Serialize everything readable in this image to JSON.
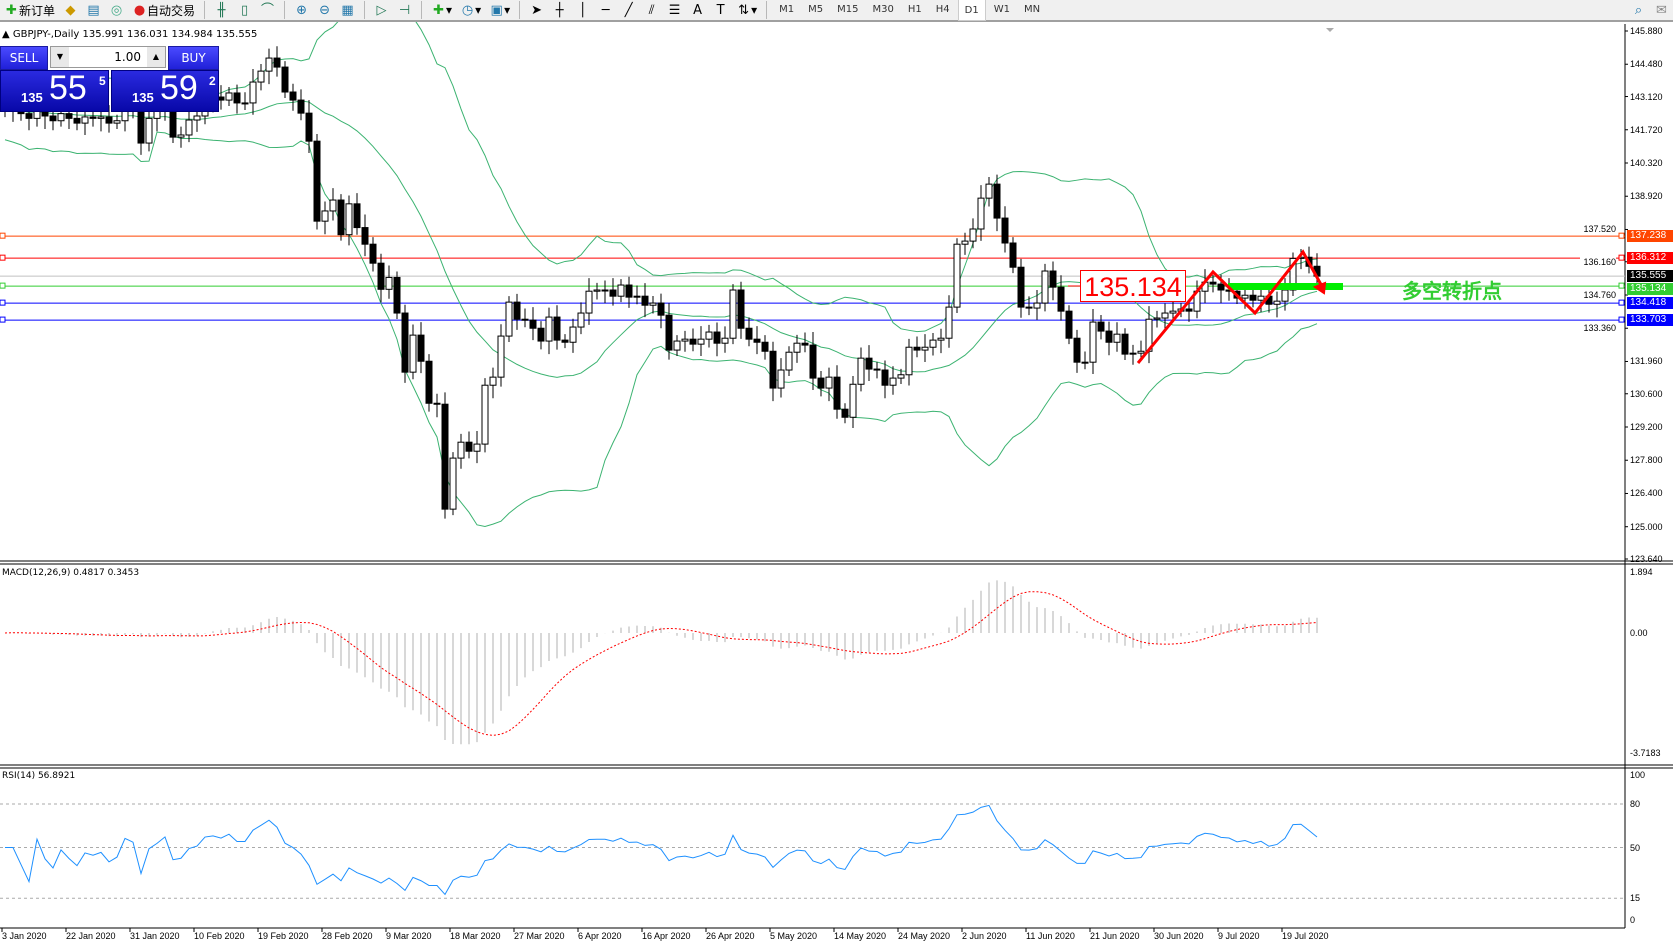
{
  "toolbar": {
    "new_order": "新订单",
    "auto_trading": "自动交易",
    "icons": [
      "new-order-icon",
      "navigator-icon",
      "market-watch-icon",
      "signals-icon",
      "auto-trading-icon",
      "bar-chart-icon",
      "candlestick-icon",
      "line-chart-icon",
      "zoom-in-icon",
      "zoom-out-icon",
      "tile-windows-icon",
      "autoscroll-icon",
      "chart-shift-icon",
      "indicators-icon",
      "periods-icon",
      "templates-icon",
      "cursor-icon",
      "crosshair-icon",
      "vertical-line-icon",
      "horizontal-line-icon",
      "trendline-icon",
      "equidistant-channel-icon",
      "fibonacci-icon",
      "text-icon",
      "text-label-icon",
      "arrows-icon",
      "search-icon",
      "chat-icon"
    ],
    "timeframes": [
      "M1",
      "M5",
      "M15",
      "M30",
      "H1",
      "H4",
      "D1",
      "W1",
      "MN"
    ],
    "active_timeframe": "D1"
  },
  "chart_header": {
    "symbol_info": "GBPJPY-,Daily  135.991 136.031 134.984 135.555"
  },
  "trade_panel": {
    "sell_label": "SELL",
    "buy_label": "BUY",
    "lot": "1.00",
    "sell_price": {
      "prefix": "135",
      "big": "55",
      "sup": "5"
    },
    "buy_price": {
      "prefix": "135",
      "big": "59",
      "sup": "2"
    }
  },
  "annotations": {
    "price_label": "135.134",
    "note": "多空转折点"
  },
  "chart_data": [
    {
      "type": "candlestick",
      "title": "GBPJPY-,Daily",
      "ohlc_last": {
        "open": 135.991,
        "high": 136.031,
        "low": 134.984,
        "close": 135.555
      },
      "indicator_overlay": "Bollinger Bands",
      "close": [
        142.5,
        142.7,
        142.4,
        142.2,
        142.6,
        142.3,
        142.1,
        142.4,
        142.2,
        142.0,
        142.26,
        142.2,
        142.26,
        142.0,
        142.1,
        142.6,
        142.5,
        141.16,
        142.2,
        142.5,
        142.9,
        141.41,
        141.5,
        142.13,
        142.3,
        143.0,
        143.1,
        142.97,
        143.27,
        142.85,
        142.85,
        143.73,
        144.19,
        144.74,
        144.36,
        143.31,
        142.97,
        142.42,
        141.24,
        137.87,
        138.3,
        138.76,
        137.3,
        138.6,
        137.6,
        136.9,
        136.1,
        135.0,
        135.5,
        134.0,
        131.51,
        133.07,
        131.97,
        130.2,
        130.16,
        125.74,
        127.89,
        128.56,
        128.18,
        128.48,
        130.96,
        131.3,
        133.03,
        134.46,
        133.74,
        133.7,
        133.36,
        132.82,
        133.83,
        132.86,
        132.77,
        133.41,
        134.0,
        134.92,
        134.97,
        134.97,
        134.71,
        135.18,
        134.67,
        134.71,
        134.33,
        134.42,
        133.91,
        132.44,
        132.82,
        132.9,
        132.69,
        132.9,
        133.2,
        132.73,
        132.94,
        134.97,
        133.36,
        132.9,
        132.77,
        132.39,
        130.84,
        131.6,
        132.35,
        132.73,
        132.65,
        131.26,
        130.84,
        131.3,
        129.95,
        129.61,
        131.0,
        132.1,
        131.64,
        131.6,
        130.96,
        131.26,
        131.4,
        132.56,
        132.44,
        132.56,
        132.86,
        132.94,
        134.25,
        136.9,
        137.03,
        137.54,
        138.84,
        139.43,
        138.0,
        136.95,
        135.93,
        134.25,
        134.21,
        134.42,
        135.77,
        135.09,
        134.08,
        132.94,
        131.93,
        131.93,
        133.62,
        133.24,
        132.77,
        133.11,
        132.27,
        132.31,
        132.39,
        133.74,
        133.79,
        134.0,
        134.08,
        134.17,
        134.08,
        134.92,
        135.3,
        135.22,
        134.97,
        134.92,
        134.63,
        134.75,
        134.54,
        134.71,
        134.37,
        134.5,
        134.97,
        136.3,
        136.35,
        135.97,
        135.555
      ],
      "x_tick_labels": [
        "3 Jan 2020",
        "22 Jan 2020",
        "31 Jan 2020",
        "10 Feb 2020",
        "19 Feb 2020",
        "28 Feb 2020",
        "9 Mar 2020",
        "18 Mar 2020",
        "27 Mar 2020",
        "6 Apr 2020",
        "16 Apr 2020",
        "26 Apr 2020",
        "5 May 2020",
        "14 May 2020",
        "24 May 2020",
        "2 Jun 2020",
        "11 Jun 2020",
        "21 Jun 2020",
        "30 Jun 2020",
        "9 Jul 2020",
        "19 Jul 2020"
      ],
      "y_tick_labels": [
        "145.880",
        "144.480",
        "143.120",
        "141.720",
        "140.320",
        "138.920",
        "137.520",
        "136.160",
        "134.760",
        "133.360",
        "131.960",
        "130.600",
        "129.200",
        "127.800",
        "126.400",
        "125.000",
        "123.640"
      ],
      "ylim": [
        123.64,
        145.88
      ],
      "hlines": [
        {
          "value": "137.238",
          "color": "#ff4500"
        },
        {
          "value": "136.312",
          "color": "#ff0000"
        },
        {
          "value": "135.555",
          "color": "#000000",
          "line": "#c0c0c0"
        },
        {
          "value": "135.134",
          "color": "#32cd32"
        },
        {
          "value": "134.418",
          "color": "#0000ff"
        },
        {
          "value": "133.703",
          "color": "#0000ff"
        }
      ]
    },
    {
      "type": "bar",
      "title": "MACD(12,26,9) 0.4817 0.3453",
      "y_tick_labels": [
        "1.894",
        "0.00",
        "-3.7183"
      ],
      "ylim": [
        -3.7183,
        1.894
      ],
      "signal_color": "#ff0000"
    },
    {
      "type": "line",
      "title": "RSI(14) 56.8921",
      "y_tick_labels": [
        "100",
        "80",
        "50",
        "15",
        "0"
      ],
      "levels": [
        80,
        50,
        15
      ],
      "ylim": [
        0,
        100
      ],
      "color": "#1e90ff"
    }
  ]
}
